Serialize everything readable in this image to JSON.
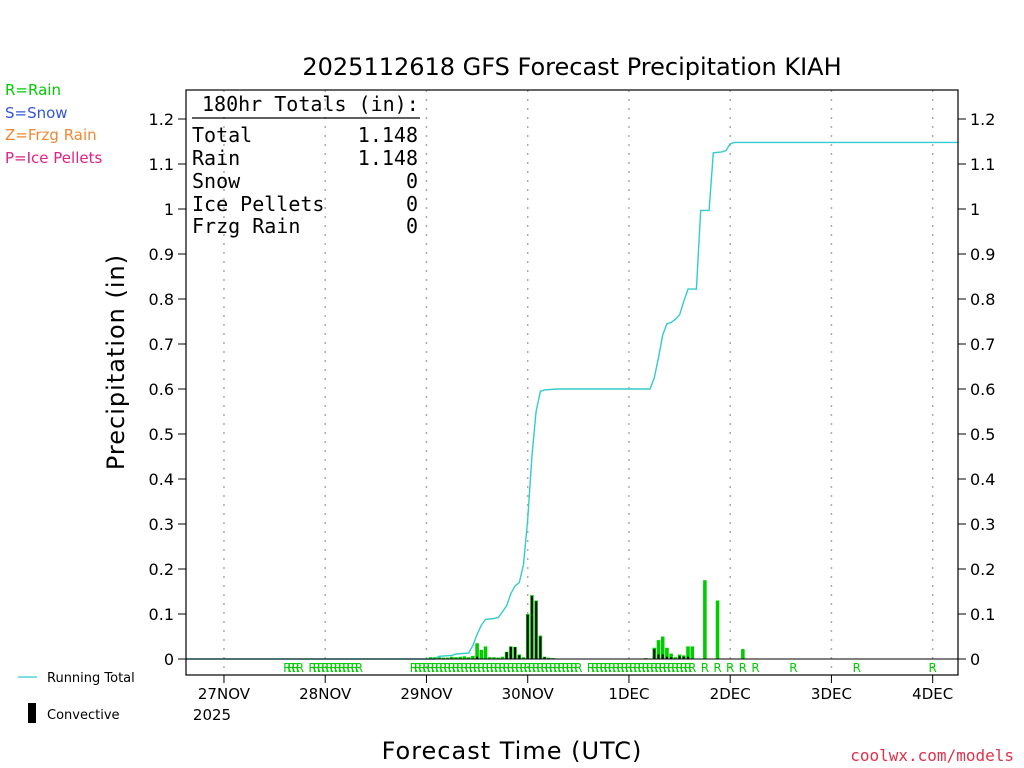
{
  "chart_data": {
    "type": "bar",
    "title": "2025112618 GFS Forecast Precipitation KIAH",
    "xlabel": "Forecast Time (UTC)",
    "ylabel": "Precipitation (in)",
    "ylim": [
      0,
      1.25
    ],
    "yticks": [
      "0",
      "0.1",
      "0.2",
      "0.3",
      "0.4",
      "0.5",
      "0.6",
      "0.7",
      "0.8",
      "0.9",
      "1",
      "1.1",
      "1.2"
    ],
    "x_hours_range": [
      -3,
      180
    ],
    "xticks": [
      {
        "label": "27NOV",
        "hour": 6
      },
      {
        "label": "28NOV",
        "hour": 30
      },
      {
        "label": "29NOV",
        "hour": 54
      },
      {
        "label": "30NOV",
        "hour": 78
      },
      {
        "label": "1DEC",
        "hour": 102
      },
      {
        "label": "2DEC",
        "hour": 126
      },
      {
        "label": "3DEC",
        "hour": 150
      },
      {
        "label": "4DEC",
        "hour": 174
      }
    ],
    "xtick_year": "2025",
    "credit": "coolwx.com/models",
    "type_legend": [
      {
        "text": "R=Rain",
        "color": "#00cc00"
      },
      {
        "text": "S=Snow",
        "color": "#3355dd"
      },
      {
        "text": "Z=Frzg Rain",
        "color": "#ee8833"
      },
      {
        "text": "P=Ice Pellets",
        "color": "#dd2288"
      }
    ],
    "series_legend": {
      "running": "Running Total",
      "convective": "Convective"
    },
    "totals": {
      "header": "180hr Totals (in):",
      "rows": [
        {
          "label": "Total",
          "value": "1.148"
        },
        {
          "label": "Rain",
          "value": "1.148"
        },
        {
          "label": "Snow",
          "value": "0"
        },
        {
          "label": "Ice Pellets",
          "value": "0"
        },
        {
          "label": "Frzg Rain",
          "value": "0"
        }
      ]
    },
    "precip_bars": [
      {
        "hour": 55,
        "value": 0.004
      },
      {
        "hour": 56,
        "value": 0.004
      },
      {
        "hour": 57,
        "value": 0.004
      },
      {
        "hour": 58,
        "value": 0.003
      },
      {
        "hour": 59,
        "value": 0.003
      },
      {
        "hour": 60,
        "value": 0.005
      },
      {
        "hour": 61,
        "value": 0.004
      },
      {
        "hour": 62,
        "value": 0.005
      },
      {
        "hour": 63,
        "value": 0.006
      },
      {
        "hour": 64,
        "value": 0.004
      },
      {
        "hour": 65,
        "value": 0.007
      },
      {
        "hour": 66,
        "value": 0.035
      },
      {
        "hour": 67,
        "value": 0.02
      },
      {
        "hour": 68,
        "value": 0.028
      },
      {
        "hour": 69,
        "value": 0.004
      },
      {
        "hour": 70,
        "value": 0.004
      },
      {
        "hour": 71,
        "value": 0.003
      },
      {
        "hour": 72,
        "value": 0.005
      },
      {
        "hour": 73,
        "value": 0.016
      },
      {
        "hour": 74,
        "value": 0.028
      },
      {
        "hour": 75,
        "value": 0.027
      },
      {
        "hour": 76,
        "value": 0.01
      },
      {
        "hour": 77,
        "value": 0.004
      },
      {
        "hour": 78,
        "value": 0.1
      },
      {
        "hour": 79,
        "value": 0.142
      },
      {
        "hour": 80,
        "value": 0.13
      },
      {
        "hour": 81,
        "value": 0.052
      },
      {
        "hour": 82,
        "value": 0.005
      },
      {
        "hour": 83,
        "value": 0.003
      },
      {
        "hour": 84,
        "value": 0.002
      },
      {
        "hour": 99,
        "value": 0.001
      },
      {
        "hour": 101,
        "value": 0.001
      },
      {
        "hour": 106,
        "value": 0.002
      },
      {
        "hour": 108,
        "value": 0.025
      },
      {
        "hour": 109,
        "value": 0.042
      },
      {
        "hour": 110,
        "value": 0.05
      },
      {
        "hour": 111,
        "value": 0.025
      },
      {
        "hour": 112,
        "value": 0.012
      },
      {
        "hour": 113,
        "value": 0.004
      },
      {
        "hour": 114,
        "value": 0.01
      },
      {
        "hour": 115,
        "value": 0.008
      },
      {
        "hour": 116,
        "value": 0.028
      },
      {
        "hour": 117,
        "value": 0.028
      },
      {
        "hour": 120,
        "value": 0.175
      },
      {
        "hour": 123,
        "value": 0.13
      },
      {
        "hour": 129,
        "value": 0.022
      }
    ],
    "convective_bars": [
      {
        "hour": 66,
        "value": 0.005
      },
      {
        "hour": 73,
        "value": 0.015
      },
      {
        "hour": 74,
        "value": 0.027
      },
      {
        "hour": 75,
        "value": 0.026
      },
      {
        "hour": 76,
        "value": 0.008
      },
      {
        "hour": 78,
        "value": 0.098
      },
      {
        "hour": 79,
        "value": 0.14
      },
      {
        "hour": 80,
        "value": 0.128
      },
      {
        "hour": 81,
        "value": 0.05
      },
      {
        "hour": 82,
        "value": 0.004
      },
      {
        "hour": 108,
        "value": 0.022
      },
      {
        "hour": 109,
        "value": 0.01
      },
      {
        "hour": 110,
        "value": 0.01
      },
      {
        "hour": 111,
        "value": 0.005
      },
      {
        "hour": 112,
        "value": 0.004
      },
      {
        "hour": 114,
        "value": 0.006
      },
      {
        "hour": 115,
        "value": 0.005
      },
      {
        "hour": 116,
        "value": 0.005
      }
    ],
    "running_total": [
      {
        "hour": -3,
        "value": 0
      },
      {
        "hour": 56,
        "value": 0
      },
      {
        "hour": 57,
        "value": 0.006
      },
      {
        "hour": 60,
        "value": 0.008
      },
      {
        "hour": 61,
        "value": 0.011
      },
      {
        "hour": 64,
        "value": 0.013
      },
      {
        "hour": 65,
        "value": 0.03
      },
      {
        "hour": 66,
        "value": 0.055
      },
      {
        "hour": 67,
        "value": 0.075
      },
      {
        "hour": 68,
        "value": 0.088
      },
      {
        "hour": 70,
        "value": 0.09
      },
      {
        "hour": 71,
        "value": 0.092
      },
      {
        "hour": 72,
        "value": 0.105
      },
      {
        "hour": 73,
        "value": 0.118
      },
      {
        "hour": 74,
        "value": 0.145
      },
      {
        "hour": 75,
        "value": 0.162
      },
      {
        "hour": 76,
        "value": 0.17
      },
      {
        "hour": 77,
        "value": 0.21
      },
      {
        "hour": 78,
        "value": 0.31
      },
      {
        "hour": 79,
        "value": 0.45
      },
      {
        "hour": 80,
        "value": 0.55
      },
      {
        "hour": 81,
        "value": 0.595
      },
      {
        "hour": 82,
        "value": 0.598
      },
      {
        "hour": 85,
        "value": 0.6
      },
      {
        "hour": 107,
        "value": 0.6
      },
      {
        "hour": 108,
        "value": 0.625
      },
      {
        "hour": 109,
        "value": 0.67
      },
      {
        "hour": 110,
        "value": 0.72
      },
      {
        "hour": 111,
        "value": 0.745
      },
      {
        "hour": 112,
        "value": 0.748
      },
      {
        "hour": 113,
        "value": 0.755
      },
      {
        "hour": 114,
        "value": 0.765
      },
      {
        "hour": 115,
        "value": 0.795
      },
      {
        "hour": 116,
        "value": 0.822
      },
      {
        "hour": 118,
        "value": 0.822
      },
      {
        "hour": 119,
        "value": 0.997
      },
      {
        "hour": 121,
        "value": 0.997
      },
      {
        "hour": 122,
        "value": 1.125
      },
      {
        "hour": 124,
        "value": 1.127
      },
      {
        "hour": 125,
        "value": 1.13
      },
      {
        "hour": 126,
        "value": 1.145
      },
      {
        "hour": 127,
        "value": 1.148
      },
      {
        "hour": 180,
        "value": 1.148
      }
    ],
    "type_marks": {
      "symbol": "R",
      "hours": [
        21,
        22,
        23,
        24,
        27,
        28,
        29,
        30,
        31,
        32,
        33,
        34,
        35,
        36,
        37,
        38,
        51,
        52,
        53,
        54,
        55,
        56,
        57,
        58,
        59,
        60,
        61,
        62,
        63,
        64,
        65,
        66,
        67,
        68,
        69,
        70,
        71,
        72,
        73,
        74,
        75,
        76,
        77,
        78,
        79,
        80,
        81,
        82,
        83,
        84,
        85,
        86,
        87,
        88,
        89,
        90,
        93,
        94,
        95,
        96,
        97,
        98,
        99,
        100,
        101,
        102,
        103,
        104,
        105,
        106,
        107,
        108,
        109,
        110,
        111,
        112,
        113,
        114,
        115,
        116,
        117,
        120,
        123,
        126,
        129,
        132,
        141,
        156,
        174
      ]
    }
  }
}
